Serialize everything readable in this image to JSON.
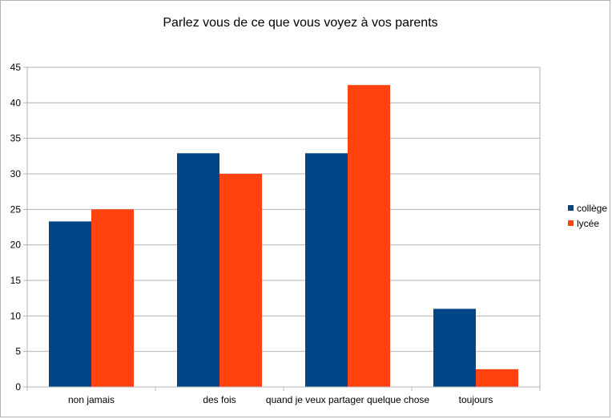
{
  "chart_data": {
    "type": "bar",
    "title": "Parlez vous de ce que vous voyez à vos parents",
    "xlabel": "",
    "ylabel": "",
    "categories": [
      "non jamais",
      "des fois",
      "quand je veux partager quelque chose",
      "toujours"
    ],
    "series": [
      {
        "name": "collège",
        "color": "#004586",
        "values": [
          23.3,
          32.9,
          32.9,
          11.0
        ]
      },
      {
        "name": "lycée",
        "color": "#ff420e",
        "values": [
          25.0,
          30.0,
          42.5,
          2.5
        ]
      }
    ],
    "ylim": [
      0,
      45
    ],
    "yticks": [
      0,
      5,
      10,
      15,
      20,
      25,
      30,
      35,
      40,
      45
    ],
    "grid": true,
    "legend_position": "right"
  }
}
